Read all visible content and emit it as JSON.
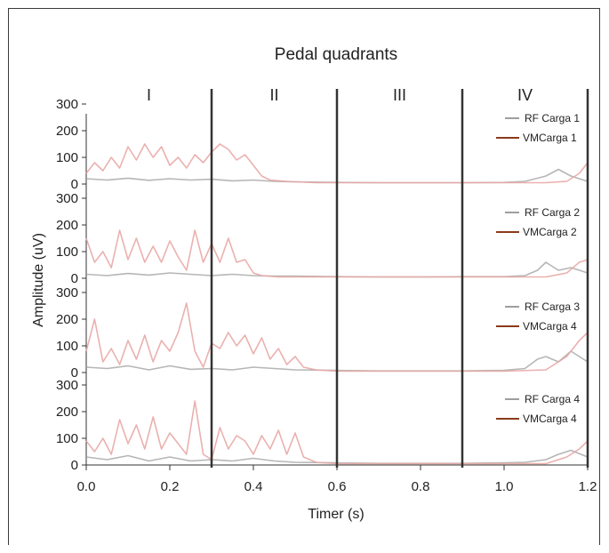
{
  "chart_data": {
    "type": "line",
    "title": "Pedal quadrants",
    "xlabel": "Timer (s)",
    "ylabel": "Amplitude (uV)",
    "xlim": [
      0.0,
      1.2
    ],
    "ylim": [
      0,
      300
    ],
    "x_ticks": [
      "0.0",
      "0.2",
      "0.4",
      "0.6",
      "0.8",
      "1.0",
      "1.2"
    ],
    "y_ticks": [
      "0",
      "100",
      "200",
      "300"
    ],
    "quadrants": [
      {
        "label": "I",
        "start": 0.0,
        "end": 0.3
      },
      {
        "label": "II",
        "start": 0.3,
        "end": 0.6
      },
      {
        "label": "III",
        "start": 0.6,
        "end": 0.9
      },
      {
        "label": "IV",
        "start": 0.9,
        "end": 1.2
      }
    ],
    "colors": {
      "rf": "#9e9e9e",
      "vm": "#8b3a1a",
      "vm_trace": "#e8a9a6",
      "divider": "#333333"
    },
    "panels": [
      {
        "legend": [
          "RF Carga 1",
          "VMCarga 1"
        ],
        "series": [
          {
            "name": "RF Carga 1",
            "x": [
              0.0,
              0.05,
              0.1,
              0.15,
              0.2,
              0.25,
              0.3,
              0.35,
              0.4,
              0.45,
              0.5,
              0.6,
              0.7,
              0.8,
              0.9,
              1.0,
              1.05,
              1.1,
              1.13,
              1.16,
              1.2
            ],
            "y": [
              20,
              15,
              22,
              14,
              20,
              15,
              18,
              12,
              15,
              10,
              8,
              6,
              5,
              5,
              5,
              6,
              10,
              30,
              55,
              30,
              10
            ]
          },
          {
            "name": "VMCarga 1",
            "x": [
              0.0,
              0.02,
              0.04,
              0.06,
              0.08,
              0.1,
              0.12,
              0.14,
              0.16,
              0.18,
              0.2,
              0.22,
              0.24,
              0.26,
              0.28,
              0.3,
              0.32,
              0.34,
              0.36,
              0.38,
              0.4,
              0.42,
              0.44,
              0.48,
              0.55,
              0.6,
              0.7,
              0.8,
              0.9,
              1.0,
              1.1,
              1.15,
              1.18,
              1.2
            ],
            "y": [
              40,
              80,
              50,
              100,
              60,
              140,
              90,
              150,
              100,
              140,
              70,
              100,
              60,
              110,
              80,
              120,
              150,
              130,
              90,
              110,
              70,
              30,
              15,
              10,
              5,
              5,
              5,
              5,
              5,
              5,
              5,
              10,
              40,
              80
            ]
          }
        ]
      },
      {
        "legend": [
          "RF Carga 2",
          "VMCarga 2"
        ],
        "series": [
          {
            "name": "RF Carga 2",
            "x": [
              0.0,
              0.05,
              0.1,
              0.15,
              0.2,
              0.25,
              0.3,
              0.35,
              0.4,
              0.45,
              0.5,
              0.6,
              0.7,
              0.8,
              0.9,
              1.0,
              1.05,
              1.08,
              1.1,
              1.13,
              1.16,
              1.2
            ],
            "y": [
              15,
              10,
              18,
              12,
              20,
              15,
              10,
              15,
              10,
              8,
              8,
              6,
              5,
              5,
              6,
              6,
              10,
              30,
              60,
              30,
              40,
              20
            ]
          },
          {
            "name": "VMCarga 2",
            "x": [
              0.0,
              0.02,
              0.04,
              0.06,
              0.08,
              0.1,
              0.12,
              0.14,
              0.16,
              0.18,
              0.2,
              0.22,
              0.24,
              0.26,
              0.28,
              0.3,
              0.32,
              0.34,
              0.36,
              0.38,
              0.4,
              0.42,
              0.46,
              0.55,
              0.6,
              0.7,
              0.8,
              0.9,
              1.0,
              1.1,
              1.15,
              1.18,
              1.2
            ],
            "y": [
              150,
              60,
              100,
              40,
              180,
              70,
              150,
              60,
              120,
              60,
              140,
              80,
              30,
              180,
              60,
              130,
              60,
              150,
              60,
              70,
              20,
              10,
              5,
              5,
              5,
              5,
              5,
              5,
              5,
              5,
              20,
              60,
              70
            ]
          }
        ]
      },
      {
        "legend": [
          "RF Carga 3",
          "VMCarga 4"
        ],
        "series": [
          {
            "name": "RF Carga 3",
            "x": [
              0.0,
              0.05,
              0.1,
              0.15,
              0.2,
              0.25,
              0.3,
              0.35,
              0.4,
              0.45,
              0.5,
              0.6,
              0.7,
              0.8,
              0.9,
              1.0,
              1.05,
              1.08,
              1.1,
              1.13,
              1.16,
              1.2
            ],
            "y": [
              20,
              15,
              25,
              10,
              25,
              12,
              15,
              10,
              20,
              15,
              10,
              8,
              6,
              6,
              6,
              8,
              15,
              50,
              60,
              40,
              80,
              40
            ]
          },
          {
            "name": "VMCarga 4",
            "x": [
              0.0,
              0.02,
              0.04,
              0.06,
              0.08,
              0.1,
              0.12,
              0.14,
              0.16,
              0.18,
              0.2,
              0.22,
              0.24,
              0.26,
              0.28,
              0.3,
              0.32,
              0.34,
              0.36,
              0.38,
              0.4,
              0.42,
              0.44,
              0.46,
              0.48,
              0.5,
              0.52,
              0.55,
              0.6,
              0.7,
              0.8,
              0.9,
              1.0,
              1.1,
              1.15,
              1.18,
              1.2
            ],
            "y": [
              80,
              200,
              40,
              90,
              30,
              120,
              50,
              140,
              40,
              120,
              80,
              150,
              260,
              80,
              20,
              110,
              90,
              150,
              100,
              140,
              70,
              130,
              50,
              90,
              30,
              60,
              20,
              10,
              5,
              5,
              5,
              5,
              5,
              10,
              60,
              120,
              150
            ]
          }
        ]
      },
      {
        "legend": [
          "RF Carga 4",
          "VMCarga 4"
        ],
        "series": [
          {
            "name": "RF Carga 4",
            "x": [
              0.0,
              0.05,
              0.1,
              0.15,
              0.2,
              0.25,
              0.3,
              0.35,
              0.4,
              0.45,
              0.5,
              0.6,
              0.7,
              0.8,
              0.9,
              1.0,
              1.05,
              1.1,
              1.13,
              1.16,
              1.2
            ],
            "y": [
              30,
              20,
              35,
              15,
              30,
              15,
              20,
              15,
              25,
              15,
              10,
              8,
              6,
              6,
              6,
              8,
              10,
              20,
              40,
              55,
              30
            ]
          },
          {
            "name": "VMCarga 4",
            "x": [
              0.0,
              0.02,
              0.04,
              0.06,
              0.08,
              0.1,
              0.12,
              0.14,
              0.16,
              0.18,
              0.2,
              0.22,
              0.24,
              0.26,
              0.28,
              0.3,
              0.32,
              0.34,
              0.36,
              0.38,
              0.4,
              0.42,
              0.44,
              0.46,
              0.48,
              0.5,
              0.52,
              0.55,
              0.6,
              0.7,
              0.8,
              0.9,
              1.0,
              1.1,
              1.15,
              1.18,
              1.2
            ],
            "y": [
              90,
              50,
              100,
              40,
              170,
              80,
              150,
              60,
              180,
              60,
              120,
              80,
              40,
              240,
              40,
              20,
              140,
              60,
              110,
              90,
              40,
              110,
              60,
              130,
              40,
              120,
              30,
              10,
              5,
              5,
              5,
              5,
              5,
              5,
              30,
              60,
              90
            ]
          }
        ]
      }
    ]
  }
}
